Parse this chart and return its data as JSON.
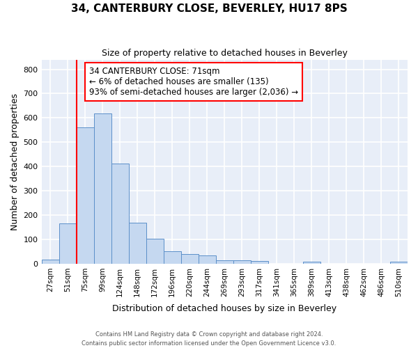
{
  "title": "34, CANTERBURY CLOSE, BEVERLEY, HU17 8PS",
  "subtitle": "Size of property relative to detached houses in Beverley",
  "xlabel": "Distribution of detached houses by size in Beverley",
  "ylabel": "Number of detached properties",
  "bar_color": "#c5d8f0",
  "bar_edge_color": "#5b8fc9",
  "background_color": "#e8eef8",
  "grid_color": "#ffffff",
  "categories": [
    "27sqm",
    "51sqm",
    "75sqm",
    "99sqm",
    "124sqm",
    "148sqm",
    "172sqm",
    "196sqm",
    "220sqm",
    "244sqm",
    "269sqm",
    "293sqm",
    "317sqm",
    "341sqm",
    "365sqm",
    "389sqm",
    "413sqm",
    "438sqm",
    "462sqm",
    "486sqm",
    "510sqm"
  ],
  "values": [
    18,
    165,
    562,
    618,
    413,
    170,
    104,
    52,
    40,
    33,
    15,
    13,
    10,
    0,
    0,
    8,
    0,
    0,
    0,
    0,
    7
  ],
  "annotation_text": "34 CANTERBURY CLOSE: 71sqm\n← 6% of detached houses are smaller (135)\n93% of semi-detached houses are larger (2,036) →",
  "vline_x": 2,
  "ylim": [
    0,
    840
  ],
  "yticks": [
    0,
    100,
    200,
    300,
    400,
    500,
    600,
    700,
    800
  ],
  "footer_line1": "Contains HM Land Registry data © Crown copyright and database right 2024.",
  "footer_line2": "Contains public sector information licensed under the Open Government Licence v3.0."
}
